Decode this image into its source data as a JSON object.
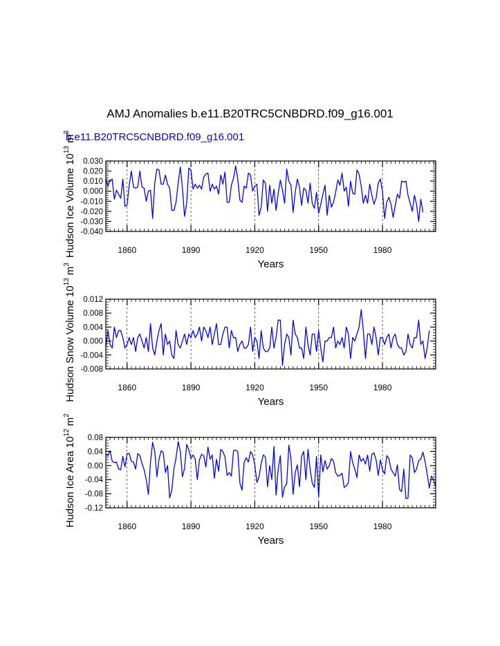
{
  "title": "AMJ Anomalies b.e11.B20TRC5CNBDRD.f09_g16.001",
  "subtitle": "b.e11.B20TRC5CNBDRD.f09_g16.001",
  "colors": {
    "series": "#0000ff",
    "axis": "#000000",
    "subtitle": "#0000ff"
  },
  "chart_data": [
    {
      "type": "line",
      "ylabel": "Hudson Ice Volume 10",
      "ylabel_exp": "13",
      "ylabel_unit": "m",
      "ylabel_unit_exp": "3",
      "xlabel": "Years",
      "xlim": [
        1850,
        2005
      ],
      "ylim": [
        -0.04,
        0.03
      ],
      "yticks": [
        -0.04,
        -0.03,
        -0.02,
        -0.01,
        0.0,
        0.01,
        0.02,
        0.03
      ],
      "ytick_labels": [
        "-0.040",
        "-0.030",
        "-0.020",
        "-0.010",
        "0.000",
        "0.010",
        "0.020",
        "0.030"
      ],
      "xticks": [
        1860,
        1890,
        1920,
        1950,
        1980
      ],
      "xtick_labels": [
        "1860",
        "1890",
        "1920",
        "1950",
        "1980"
      ],
      "x_start": 1850,
      "values": [
        0.012,
        0.005,
        0.011,
        0.012,
        -0.008,
        0.001,
        -0.003,
        -0.007,
        0.012,
        -0.015,
        -0.014,
        0.006,
        0.02,
        0.004,
        0.003,
        0.004,
        0.02,
        0.004,
        0.003,
        -0.01,
        0.0,
        0.001,
        -0.027,
        0.008,
        0.022,
        0.021,
        0.007,
        0.007,
        0.016,
        0.007,
        0.003,
        -0.019,
        -0.019,
        -0.011,
        0.008,
        0.024,
        0.003,
        -0.025,
        -0.012,
        0.023,
        0.021,
        0.002,
        0.007,
        0.003,
        0.006,
        0.002,
        0.014,
        0.017,
        0.018,
        0.0,
        0.007,
        0.002,
        0.005,
        -0.003,
        0.016,
        0.007,
        0.019,
        -0.011,
        -0.011,
        0.006,
        0.013,
        0.025,
        0.012,
        -0.009,
        -0.011,
        0.005,
        0.003,
        0.018,
        0.016,
        0.0,
        0.005,
        0.007,
        -0.024,
        -0.016,
        0.011,
        0.008,
        -0.02,
        0.006,
        -0.012,
        0.002,
        -0.019,
        -0.002,
        0.011,
        0.001,
        -0.012,
        0.022,
        0.01,
        0.006,
        -0.021,
        -0.001,
        0.012,
        0.004,
        -0.014,
        0.003,
        0.001,
        -0.012,
        0.008,
        -0.012,
        -0.017,
        -0.001,
        -0.022,
        -0.013,
        -0.003,
        0.006,
        -0.024,
        -0.004,
        -0.016,
        -0.011,
        -0.001,
        0.011,
        0.006,
        0.018,
        0.0,
        0.004,
        -0.015,
        0.01,
        -0.002,
        -0.003,
        0.021,
        0.017,
        0.005,
        -0.012,
        -0.004,
        -0.012,
        0.007,
        -0.004,
        -0.013,
        -0.007,
        0.008,
        0.012,
        0.0,
        -0.027,
        -0.011,
        -0.006,
        -0.013,
        -0.026,
        -0.014,
        -0.003,
        -0.007,
        0.01,
        0.009,
        0.01,
        -0.004,
        -0.012,
        -0.02,
        -0.004,
        -0.013,
        -0.03,
        -0.008,
        -0.021
      ]
    },
    {
      "type": "line",
      "ylabel": "Hudson Snow Volume 10",
      "ylabel_exp": "13",
      "ylabel_unit": "m",
      "ylabel_unit_exp": "3",
      "xlabel": "Years",
      "xlim": [
        1850,
        2005
      ],
      "ylim": [
        -0.008,
        0.012
      ],
      "yticks": [
        -0.008,
        -0.004,
        0.0,
        0.004,
        0.008,
        0.012
      ],
      "ytick_labels": [
        "-0.008",
        "-0.004",
        "0.000",
        "0.004",
        "0.008",
        "0.012"
      ],
      "xticks": [
        1860,
        1890,
        1920,
        1950,
        1980
      ],
      "xtick_labels": [
        "1860",
        "1890",
        "1920",
        "1950",
        "1980"
      ],
      "x_start": 1850,
      "values": [
        -0.002,
        0.003,
        -0.001,
        -0.002,
        0.004,
        0.001,
        0.003,
        0.003,
        0.001,
        -0.002,
        -0.001,
        0.001,
        -0.001,
        0.001,
        -0.003,
        0.001,
        0.002,
        0.0,
        -0.002,
        0.001,
        -0.003,
        0.005,
        -0.002,
        -0.004,
        0.0,
        0.003,
        0.005,
        -0.004,
        0.002,
        -0.001,
        0.0,
        -0.004,
        -0.005,
        0.003,
        -0.001,
        -0.002,
        0.0,
        0.002,
        -0.001,
        0.002,
        0.001,
        0.003,
        0.001,
        0.002,
        0.004,
        0.0,
        0.004,
        0.003,
        0.001,
        0.004,
        -0.001,
        0.002,
        0.005,
        -0.001,
        -0.001,
        0.002,
        0.004,
        0.004,
        -0.002,
        0.003,
        0.001,
        0.001,
        -0.003,
        -0.001,
        0.0,
        -0.002,
        -0.002,
        -0.001,
        0.004,
        -0.003,
        0.001,
        0.0,
        -0.005,
        0.003,
        -0.002,
        -0.003,
        -0.003,
        -0.002,
        0.004,
        -0.002,
        0.001,
        0.006,
        0.006,
        -0.007,
        -0.001,
        0.002,
        0.001,
        -0.004,
        0.006,
        0.002,
        0.001,
        -0.002,
        -0.002,
        -0.005,
        0.004,
        -0.001,
        -0.004,
        0.002,
        0.002,
        -0.003,
        0.003,
        -0.002,
        -0.006,
        0.0,
        0.0,
        0.001,
        0.001,
        0.004,
        -0.002,
        0.0,
        -0.001,
        0.001,
        -0.002,
        0.004,
        0.002,
        -0.005,
        0.001,
        0.0,
        0.002,
        0.004,
        0.009,
        0.003,
        -0.005,
        0.002,
        0.002,
        -0.001,
        0.004,
        0.001,
        -0.004,
        0.001,
        0.001,
        -0.001,
        0.001,
        0.002,
        -0.002,
        0.001,
        0.002,
        -0.001,
        -0.002,
        -0.002,
        -0.004,
        -0.003,
        0.002,
        -0.001,
        -0.002,
        0.001,
        0.001,
        0.006,
        -0.001,
        0.0,
        -0.005,
        -0.002,
        0.003
      ]
    },
    {
      "type": "line",
      "ylabel": "Hudson Ice Area 10",
      "ylabel_exp": "12",
      "ylabel_unit": "m",
      "ylabel_unit_exp": "2",
      "xlabel": "Years",
      "xlim": [
        1850,
        2005
      ],
      "ylim": [
        -0.12,
        0.08
      ],
      "yticks": [
        -0.12,
        -0.08,
        -0.04,
        0.0,
        0.04,
        0.08
      ],
      "ytick_labels": [
        "-0.12",
        "-0.08",
        "-0.04",
        "0.00",
        "0.04",
        "0.08"
      ],
      "xticks": [
        1860,
        1890,
        1920,
        1950,
        1980
      ],
      "xtick_labels": [
        "1860",
        "1890",
        "1920",
        "1950",
        "1980"
      ],
      "x_start": 1850,
      "values": [
        0.032,
        0.028,
        0.042,
        0.012,
        0.008,
        0.01,
        -0.01,
        -0.012,
        0.026,
        -0.004,
        0.034,
        0.034,
        0.012,
        0.01,
        -0.01,
        0.034,
        0.028,
        0.006,
        -0.012,
        -0.04,
        -0.082,
        0.01,
        0.066,
        0.04,
        -0.032,
        0.018,
        0.042,
        0.036,
        -0.02,
        0.0,
        -0.092,
        -0.07,
        -0.01,
        0.022,
        0.068,
        0.04,
        -0.032,
        -0.008,
        0.06,
        0.044,
        0.02,
        0.03,
        0.018,
        -0.04,
        0.016,
        0.032,
        0.028,
        -0.004,
        0.052,
        0.018,
        0.03,
        -0.036,
        0.018,
        -0.016,
        0.046,
        0.04,
        0.024,
        -0.028,
        -0.02,
        -0.03,
        0.042,
        0.044,
        0.04,
        -0.05,
        -0.07,
        0.01,
        0.022,
        0.01,
        0.04,
        0.03,
        0.002,
        -0.048,
        -0.032,
        0.006,
        0.03,
        0.024,
        -0.06,
        0.0,
        -0.04,
        0.054,
        -0.084,
        -0.01,
        0.028,
        -0.09,
        -0.06,
        -0.052,
        0.058,
        0.02,
        -0.082,
        -0.02,
        0.002,
        -0.06,
        0.026,
        0.04,
        -0.04,
        0.046,
        -0.01,
        -0.05,
        -0.062,
        0.026,
        -0.09,
        0.03,
        -0.018,
        0.014,
        -0.01,
        0.0,
        0.02,
        0.012,
        -0.02,
        -0.03,
        -0.028,
        -0.022,
        -0.062,
        -0.058,
        -0.048,
        0.04,
        0.008,
        -0.01,
        -0.034,
        0.03,
        0.012,
        0.02,
        0.004,
        0.03,
        -0.016,
        0.032,
        0.036,
        0.016,
        -0.028,
        0.016,
        -0.012,
        -0.024,
        0.028,
        0.02,
        -0.01,
        -0.02,
        -0.03,
        0.002,
        -0.068,
        -0.074,
        -0.01,
        -0.094,
        -0.092,
        0.03,
        0.022,
        -0.02,
        -0.01,
        0.014,
        0.018,
        0.038,
        0.012,
        -0.024,
        -0.064,
        -0.03,
        -0.04,
        -0.06
      ]
    }
  ]
}
